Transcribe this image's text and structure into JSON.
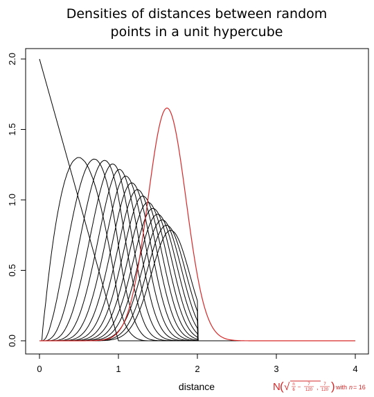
{
  "chart_data": {
    "type": "line",
    "title_lines": [
      "Densities of distances between random",
      "points in a unit hypercube"
    ],
    "xlabel": "distance",
    "ylabel": "",
    "xlim": [
      0,
      4
    ],
    "ylim": [
      0,
      2
    ],
    "x_ticks": [
      "0",
      "1",
      "2",
      "3",
      "4"
    ],
    "y_ticks": [
      "0.0",
      "0.5",
      "1.0",
      "1.5",
      "2.0"
    ],
    "dimensions": [
      1,
      2,
      3,
      4,
      5,
      6,
      7,
      8,
      9,
      10,
      11,
      12,
      13,
      14,
      15,
      16
    ],
    "series_color": "#000000",
    "overlay": {
      "color": "#d62728",
      "n": 16,
      "distribution": "normal",
      "mean_formula": "sqrt(n/6 - 7/120)",
      "variance": 0.05833
    },
    "annotation": {
      "N": "N",
      "lparen": "(",
      "rparen": ")",
      "sqrt": "√",
      "n": "n",
      "six": "6",
      "minus": "−",
      "seven_a": "7",
      "onetwenty_a": "120",
      "comma": ",",
      "seven_b": "7",
      "onetwenty_b": "120",
      "tail": "with",
      "n_var": "n",
      "equals": "= 16"
    },
    "grid": false,
    "legend": "none"
  }
}
